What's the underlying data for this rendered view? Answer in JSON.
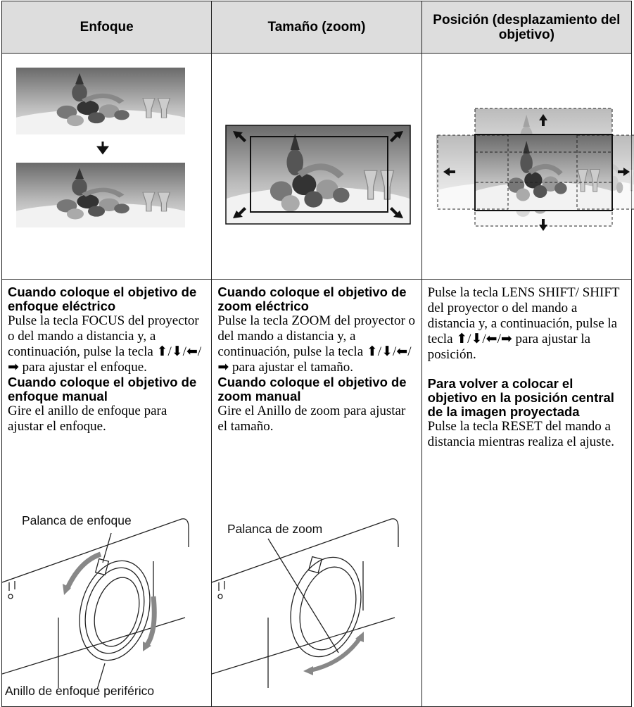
{
  "header": {
    "columns": [
      "Enfoque",
      "Tamaño (zoom)",
      "Posición (desplazamiento del objetivo)"
    ]
  },
  "columns": [
    {
      "sections": [
        {
          "heading": "Cuando coloque el objetivo de enfoque eléctrico",
          "text": "Pulse la tecla FOCUS del proyector o del mando a distancia y, a continuación, pulse la tecla ⬆/⬇/⬅/➡ para ajustar el enfoque."
        },
        {
          "heading": "Cuando coloque el objetivo de enfoque manual",
          "text": "Gire el anillo de enfoque para ajustar el enfoque."
        }
      ],
      "labels": [
        "Palanca de enfoque",
        "Anillo de enfoque periférico"
      ]
    },
    {
      "sections": [
        {
          "heading": "Cuando coloque el objetivo de zoom eléctrico",
          "text": "Pulse la tecla ZOOM del proyector o del mando a distancia y, a continuación, pulse la tecla ⬆/⬇/⬅/➡ para ajustar el tamaño."
        },
        {
          "heading": "Cuando coloque el objetivo de zoom manual",
          "text": "Gire el Anillo de zoom para ajustar el tamaño."
        }
      ],
      "labels": [
        "Palanca de zoom"
      ]
    },
    {
      "sections": [
        {
          "text": "Pulse la tecla LENS SHIFT/ SHIFT del proyector o del mando a distancia y, a continuación, pulse la tecla ⬆/⬇/⬅/➡ para ajustar la posición."
        },
        {
          "heading": "Para volver a colocar el objetivo en la posición central de la imagen proyectada",
          "text": "Pulse la tecla RESET del mando a distancia mientras realiza el ajuste."
        }
      ]
    }
  ]
}
